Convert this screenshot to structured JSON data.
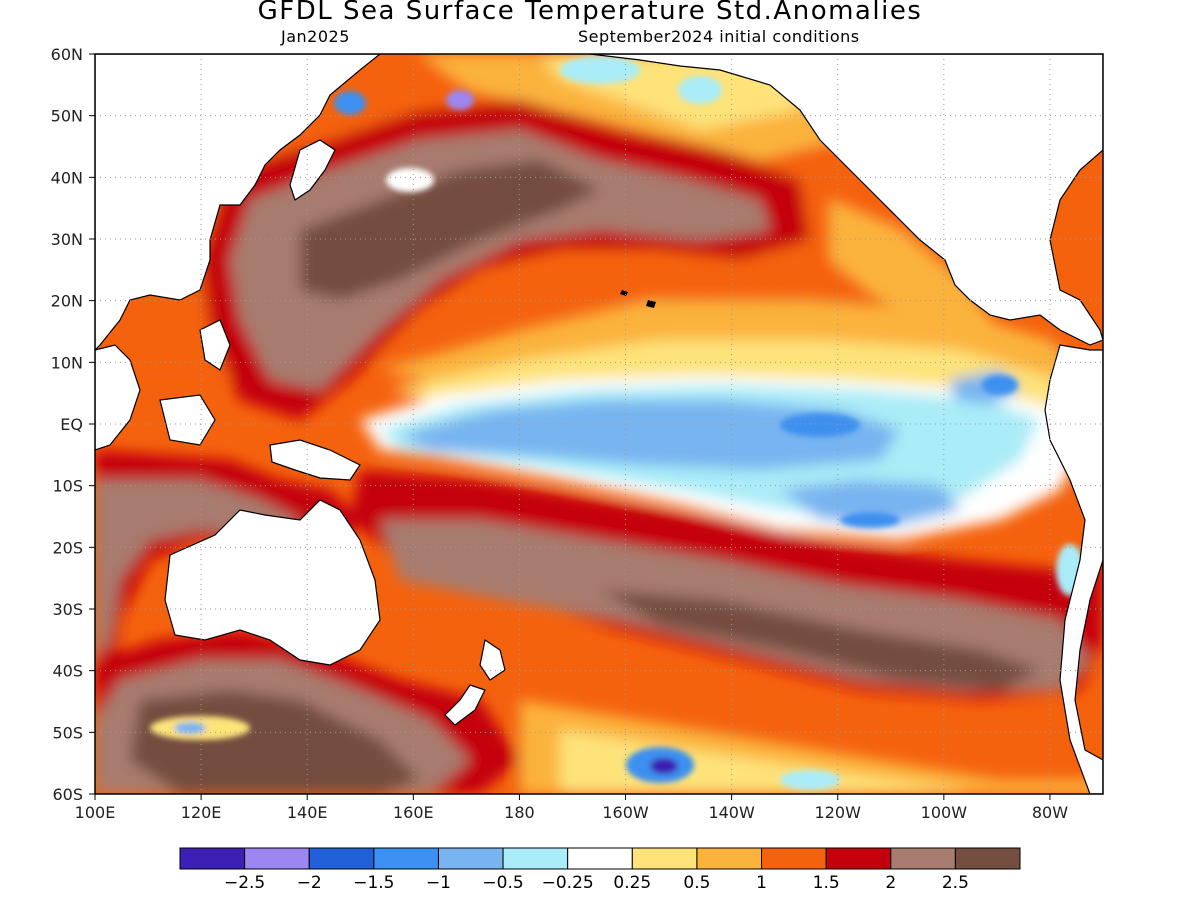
{
  "title": "GFDL Sea Surface Temperature Std.Anomalies",
  "subtitle_left": "Jan2025",
  "subtitle_right": "September2024 initial conditions",
  "map": {
    "lon_range": [
      100,
      290
    ],
    "lat_range": [
      -60,
      60
    ],
    "lat_ticks": [
      "60N",
      "50N",
      "40N",
      "30N",
      "20N",
      "10N",
      "EQ",
      "10S",
      "20S",
      "30S",
      "40S",
      "50S",
      "60S"
    ],
    "lon_ticks": [
      "100E",
      "120E",
      "140E",
      "160E",
      "180",
      "160W",
      "140W",
      "120W",
      "100W",
      "80W"
    ],
    "grid": true
  },
  "legend": {
    "colors": [
      "#3c1fb4",
      "#9d86f0",
      "#2060d8",
      "#3c90f0",
      "#78b4f0",
      "#aaecf7",
      "#ffffff",
      "#fde37a",
      "#fbb33c",
      "#f5620e",
      "#c4000c",
      "#a77c6e",
      "#744e40"
    ],
    "labels": [
      "-2.5",
      "-2",
      "-1.5",
      "-1",
      "-0.5",
      "-0.25",
      "0.25",
      "0.5",
      "1",
      "1.5",
      "2",
      "2.5"
    ]
  }
}
